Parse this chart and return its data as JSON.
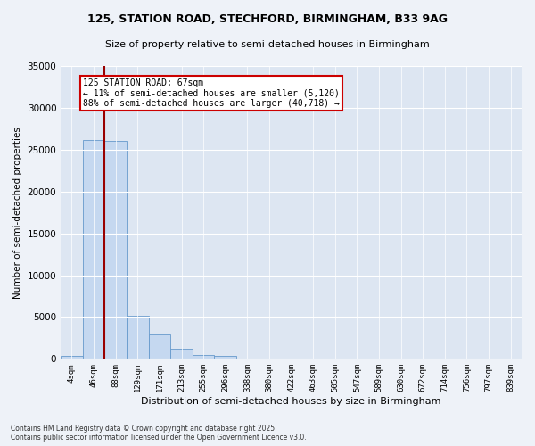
{
  "title1": "125, STATION ROAD, STECHFORD, BIRMINGHAM, B33 9AG",
  "title2": "Size of property relative to semi-detached houses in Birmingham",
  "xlabel": "Distribution of semi-detached houses by size in Birmingham",
  "ylabel": "Number of semi-detached properties",
  "footnote": "Contains HM Land Registry data © Crown copyright and database right 2025.\nContains public sector information licensed under the Open Government Licence v3.0.",
  "bin_labels": [
    "4sqm",
    "46sqm",
    "88sqm",
    "129sqm",
    "171sqm",
    "213sqm",
    "255sqm",
    "296sqm",
    "338sqm",
    "380sqm",
    "422sqm",
    "463sqm",
    "505sqm",
    "547sqm",
    "589sqm",
    "630sqm",
    "672sqm",
    "714sqm",
    "756sqm",
    "797sqm",
    "839sqm"
  ],
  "bar_values": [
    400,
    26200,
    26000,
    5100,
    3000,
    1200,
    500,
    400,
    0,
    0,
    0,
    0,
    0,
    0,
    0,
    0,
    0,
    0,
    0,
    0,
    0
  ],
  "bar_color": "#c5d8f0",
  "bar_edge_color": "#6699cc",
  "property_line_color": "#990000",
  "annotation_text": "125 STATION ROAD: 67sqm\n← 11% of semi-detached houses are smaller (5,120)\n88% of semi-detached houses are larger (40,718) →",
  "annotation_box_color": "#ffffff",
  "annotation_box_edge": "#cc0000",
  "ylim": [
    0,
    35000
  ],
  "yticks": [
    0,
    5000,
    10000,
    15000,
    20000,
    25000,
    30000,
    35000
  ],
  "background_color": "#eef2f8",
  "plot_background": "#dde6f2",
  "title1_fontsize": 9,
  "title2_fontsize": 8
}
